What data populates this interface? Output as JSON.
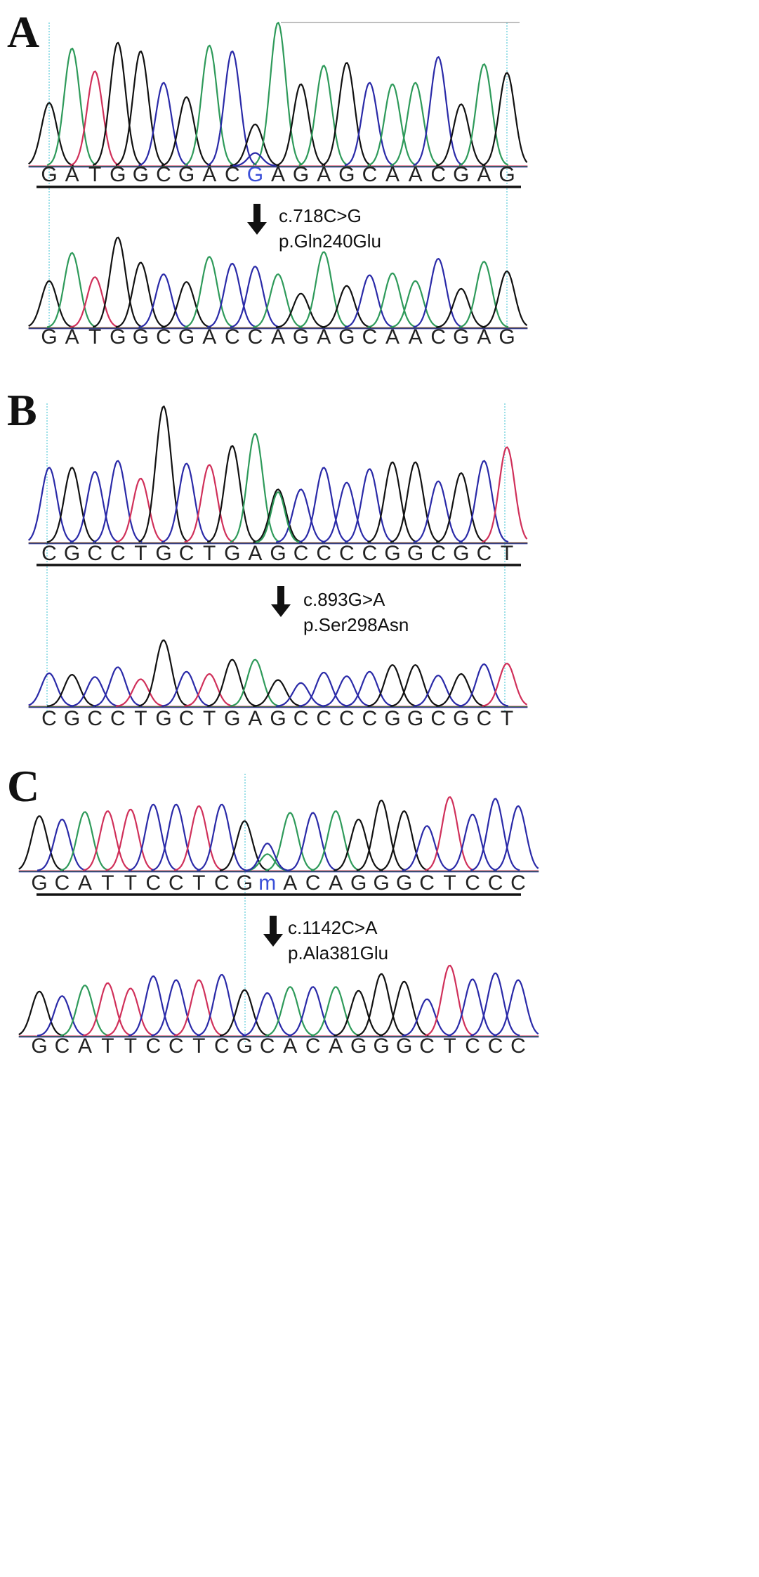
{
  "colors": {
    "A": "#2e9a5a",
    "C": "#2a2aa8",
    "G": "#111111",
    "T": "#d0305a",
    "highlight": "#3a4fd8",
    "guide": "#7fd6e0",
    "separator": "#111111"
  },
  "panels": [
    {
      "letter": "A",
      "tracks": [
        {
          "role": "patient",
          "sequence": [
            "G",
            "A",
            "T",
            "G",
            "G",
            "C",
            "G",
            "A",
            "C",
            "G",
            "A",
            "G",
            "A",
            "G",
            "C",
            "A",
            "A",
            "C",
            "G",
            "A",
            "G"
          ],
          "heights": [
            0.44,
            0.82,
            0.66,
            0.86,
            0.8,
            0.58,
            0.48,
            0.84,
            0.8,
            0.29,
            1.0,
            0.57,
            0.7,
            0.72,
            0.58,
            0.57,
            0.58,
            0.76,
            0.43,
            0.71,
            0.65
          ],
          "highlight_index": 9,
          "overlap_peaks": [
            {
              "index": 9,
              "base": "C",
              "height": 0.09
            }
          ]
        },
        {
          "role": "reference",
          "sequence": [
            "G",
            "A",
            "T",
            "G",
            "G",
            "C",
            "G",
            "A",
            "C",
            "C",
            "A",
            "G",
            "A",
            "G",
            "C",
            "A",
            "A",
            "C",
            "G",
            "A",
            "G"
          ],
          "heights": [
            0.48,
            0.77,
            0.52,
            0.93,
            0.67,
            0.55,
            0.47,
            0.73,
            0.66,
            0.63,
            0.55,
            0.35,
            0.78,
            0.43,
            0.54,
            0.56,
            0.48,
            0.71,
            0.4,
            0.68,
            0.58
          ],
          "highlight_index": null,
          "overlap_peaks": []
        }
      ],
      "annotation": {
        "cdna": "c.718C>G",
        "protein": "p.Gln240Glu"
      }
    },
    {
      "letter": "B",
      "tracks": [
        {
          "role": "patient",
          "sequence": [
            "C",
            "G",
            "C",
            "C",
            "T",
            "G",
            "C",
            "T",
            "G",
            "A",
            "G",
            "C",
            "C",
            "C",
            "C",
            "G",
            "G",
            "C",
            "G",
            "C",
            "T"
          ],
          "heights": [
            0.55,
            0.55,
            0.52,
            0.6,
            0.47,
            1.0,
            0.58,
            0.57,
            0.71,
            0.8,
            0.39,
            0.39,
            0.55,
            0.44,
            0.54,
            0.59,
            0.59,
            0.45,
            0.51,
            0.6,
            0.7
          ],
          "highlight_index": null,
          "overlap_peaks": [
            {
              "index": 10,
              "base": "A",
              "height": 0.37
            }
          ]
        },
        {
          "role": "reference",
          "sequence": [
            "C",
            "G",
            "C",
            "C",
            "T",
            "G",
            "C",
            "T",
            "G",
            "A",
            "G",
            "C",
            "C",
            "C",
            "C",
            "G",
            "G",
            "C",
            "G",
            "C",
            "T"
          ],
          "heights": [
            0.44,
            0.42,
            0.39,
            0.52,
            0.36,
            0.88,
            0.46,
            0.43,
            0.62,
            0.62,
            0.35,
            0.31,
            0.45,
            0.4,
            0.46,
            0.55,
            0.55,
            0.41,
            0.43,
            0.56,
            0.57
          ],
          "highlight_index": null,
          "overlap_peaks": []
        }
      ],
      "annotation": {
        "cdna": "c.893G>A",
        "protein": "p.Ser298Asn"
      }
    },
    {
      "letter": "C",
      "tracks": [
        {
          "role": "patient",
          "sequence": [
            "G",
            "C",
            "A",
            "T",
            "T",
            "C",
            "C",
            "T",
            "C",
            "G",
            "m",
            "A",
            "C",
            "A",
            "G",
            "G",
            "G",
            "C",
            "T",
            "C",
            "C",
            "C"
          ],
          "heights": [
            0.66,
            0.62,
            0.71,
            0.72,
            0.74,
            0.8,
            0.8,
            0.78,
            0.8,
            0.6,
            0.33,
            0.7,
            0.7,
            0.72,
            0.62,
            0.85,
            0.72,
            0.54,
            0.89,
            0.68,
            0.87,
            0.78
          ],
          "highlight_index": 10,
          "overlap_peaks": [
            {
              "index": 10,
              "base": "A",
              "height": 0.2
            }
          ]
        },
        {
          "role": "reference",
          "sequence": [
            "G",
            "C",
            "A",
            "T",
            "T",
            "C",
            "C",
            "T",
            "C",
            "G",
            "C",
            "A",
            "C",
            "A",
            "G",
            "G",
            "G",
            "C",
            "T",
            "C",
            "C",
            "C"
          ],
          "heights": [
            0.58,
            0.52,
            0.66,
            0.69,
            0.62,
            0.78,
            0.73,
            0.73,
            0.8,
            0.6,
            0.56,
            0.64,
            0.64,
            0.64,
            0.59,
            0.81,
            0.71,
            0.48,
            0.92,
            0.74,
            0.82,
            0.73
          ],
          "highlight_index": null,
          "overlap_peaks": []
        }
      ],
      "annotation": {
        "cdna": "c.1142C>A",
        "protein": "p.Ala381Glu"
      }
    }
  ]
}
